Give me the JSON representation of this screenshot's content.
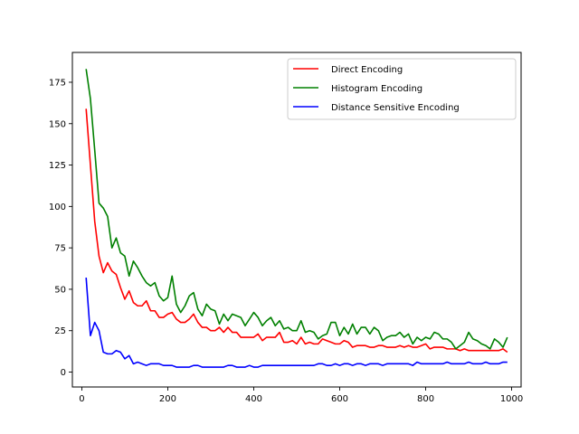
{
  "chart_data": {
    "type": "line",
    "title": "",
    "xlabel": "",
    "ylabel": "",
    "xlim": [
      -22,
      1022
    ],
    "ylim": [
      -9,
      193
    ],
    "xticks": [
      0,
      200,
      400,
      600,
      800,
      1000
    ],
    "yticks": [
      0,
      25,
      50,
      75,
      100,
      125,
      150,
      175
    ],
    "grid": false,
    "legend_position": "top-right",
    "x": [
      10,
      20,
      30,
      40,
      50,
      60,
      70,
      80,
      90,
      100,
      110,
      120,
      130,
      140,
      150,
      160,
      170,
      180,
      190,
      200,
      210,
      220,
      230,
      240,
      250,
      260,
      270,
      280,
      290,
      300,
      310,
      320,
      330,
      340,
      350,
      360,
      370,
      380,
      390,
      400,
      410,
      420,
      430,
      440,
      450,
      460,
      470,
      480,
      490,
      500,
      510,
      520,
      530,
      540,
      550,
      560,
      570,
      580,
      590,
      600,
      610,
      620,
      630,
      640,
      650,
      660,
      670,
      680,
      690,
      700,
      710,
      720,
      730,
      740,
      750,
      760,
      770,
      780,
      790,
      800,
      810,
      820,
      830,
      840,
      850,
      860,
      870,
      880,
      890,
      900,
      910,
      920,
      930,
      940,
      950,
      960,
      970,
      980,
      990
    ],
    "series": [
      {
        "name": "Direct Encoding",
        "color": "#ff0000",
        "values": [
          159,
          125,
          91,
          70,
          60,
          66,
          61,
          59,
          51,
          44,
          49,
          42,
          40,
          40,
          43,
          37,
          37,
          33,
          33,
          35,
          36,
          32,
          30,
          30,
          32,
          35,
          30,
          27,
          27,
          25,
          25,
          27,
          24,
          27,
          24,
          24,
          21,
          21,
          21,
          21,
          23,
          19,
          21,
          21,
          21,
          24,
          18,
          18,
          19,
          17,
          21,
          17,
          18,
          17,
          17,
          20,
          19,
          18,
          17,
          17,
          19,
          18,
          15,
          16,
          16,
          16,
          15,
          15,
          16,
          16,
          15,
          15,
          15,
          16,
          15,
          16,
          15,
          15,
          16,
          17,
          14,
          15,
          15,
          15,
          14,
          14,
          14,
          13,
          14,
          13,
          13,
          13,
          13,
          13,
          13,
          13,
          13,
          14,
          12
        ]
      },
      {
        "name": "Histogram Encoding",
        "color": "#008000",
        "values": [
          183,
          165,
          134,
          102,
          99,
          94,
          75,
          81,
          72,
          70,
          58,
          67,
          63,
          58,
          54,
          52,
          54,
          46,
          43,
          45,
          58,
          41,
          36,
          40,
          46,
          48,
          38,
          34,
          41,
          38,
          37,
          29,
          35,
          31,
          35,
          34,
          33,
          28,
          32,
          36,
          33,
          28,
          31,
          33,
          28,
          31,
          26,
          27,
          25,
          25,
          31,
          24,
          25,
          24,
          20,
          22,
          23,
          30,
          30,
          22,
          27,
          23,
          29,
          23,
          27,
          27,
          23,
          27,
          25,
          19,
          21,
          22,
          22,
          24,
          21,
          23,
          17,
          21,
          19,
          21,
          20,
          24,
          23,
          20,
          20,
          18,
          14,
          16,
          18,
          24,
          20,
          19,
          17,
          16,
          14,
          20,
          18,
          15,
          21
        ]
      },
      {
        "name": "Distance Sensitive Encoding",
        "color": "#0000ff",
        "values": [
          57,
          22,
          30,
          25,
          12,
          11,
          11,
          13,
          12,
          8,
          10,
          5,
          6,
          5,
          4,
          5,
          5,
          5,
          4,
          4,
          4,
          3,
          3,
          3,
          3,
          4,
          4,
          3,
          3,
          3,
          3,
          3,
          3,
          4,
          4,
          3,
          3,
          3,
          4,
          3,
          3,
          4,
          4,
          4,
          4,
          4,
          4,
          4,
          4,
          4,
          4,
          4,
          4,
          4,
          5,
          5,
          4,
          4,
          5,
          4,
          5,
          5,
          4,
          5,
          5,
          4,
          5,
          5,
          5,
          4,
          5,
          5,
          5,
          5,
          5,
          5,
          4,
          6,
          5,
          5,
          5,
          5,
          5,
          5,
          6,
          5,
          5,
          5,
          5,
          6,
          5,
          5,
          5,
          6,
          5,
          5,
          5,
          6,
          6
        ]
      }
    ]
  }
}
